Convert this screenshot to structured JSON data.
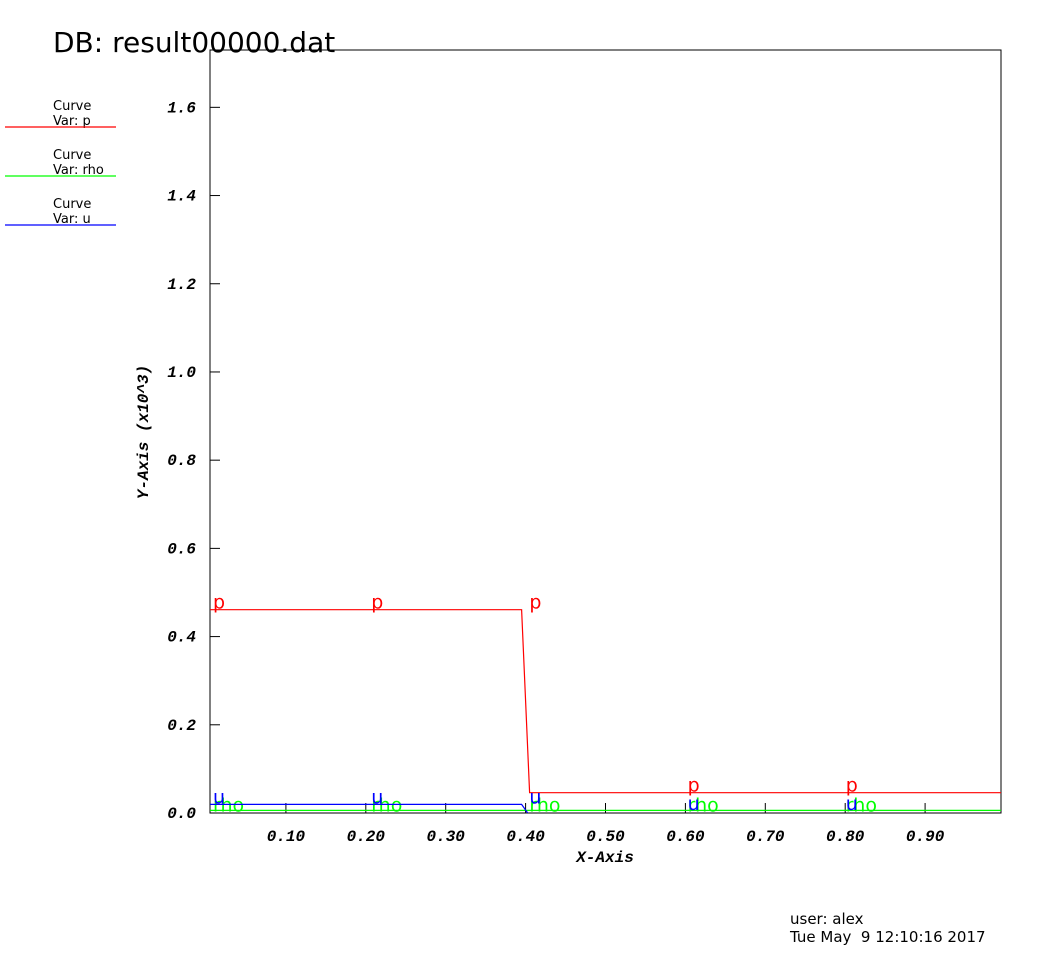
{
  "chart_data": {
    "type": "line",
    "title": "DB: result00000.dat",
    "x_label": "X-Axis",
    "y_label": "Y-Axis (x10^3)",
    "user": "user: alex",
    "date": "Tue May  9 12:10:16 2017",
    "x": [
      0.005,
      0.395,
      0.405,
      0.995
    ],
    "series": [
      {
        "name": "p",
        "legend": [
          "Curve",
          "Var: p"
        ],
        "color": "#ff0000",
        "values": [
          0.461,
          0.461,
          0.046,
          0.046
        ]
      },
      {
        "name": "rho",
        "legend": [
          "Curve",
          "Var: rho"
        ],
        "color": "#00ff00",
        "values": [
          0.006,
          0.006,
          0.006,
          0.006
        ]
      },
      {
        "name": "u",
        "legend": [
          "Curve",
          "Var: u"
        ],
        "color": "#0000ff",
        "values": [
          0.0196,
          0.0196,
          -0.006,
          -0.006
        ]
      }
    ],
    "xlim": [
      0.005,
      0.995
    ],
    "ylim": [
      0,
      1.73
    ],
    "xticks": [
      {
        "value": 0.1,
        "label": "0.10"
      },
      {
        "value": 0.2,
        "label": "0.20"
      },
      {
        "value": 0.3,
        "label": "0.30"
      },
      {
        "value": 0.4,
        "label": "0.40"
      },
      {
        "value": 0.5,
        "label": "0.50"
      },
      {
        "value": 0.6,
        "label": "0.60"
      },
      {
        "value": 0.7,
        "label": "0.70"
      },
      {
        "value": 0.8,
        "label": "0.80"
      },
      {
        "value": 0.9,
        "label": "0.90"
      }
    ],
    "yticks": [
      {
        "value": 0,
        "label": "0.0"
      },
      0.2,
      0.4,
      0.6,
      0.8,
      {
        "value": 1,
        "label": "1.0"
      },
      1.2,
      1.4,
      1.6
    ]
  }
}
